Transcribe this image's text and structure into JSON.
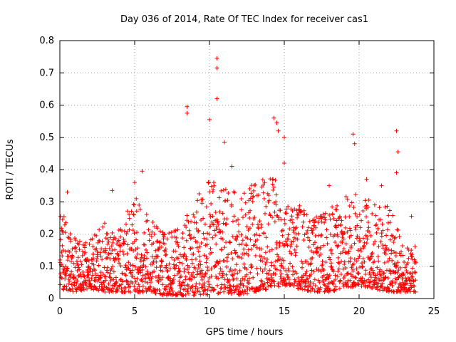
{
  "chart_data": {
    "type": "scatter",
    "title": "Day 036 of 2014, Rate Of TEC Index for receiver cas1",
    "xlabel": "GPS time / hours",
    "ylabel": "ROTI / TECUs",
    "xlim": [
      0,
      25
    ],
    "ylim": [
      0,
      0.8
    ],
    "xticks": [
      0,
      5,
      10,
      15,
      20,
      25
    ],
    "yticks": [
      0,
      0.1,
      0.2,
      0.3,
      0.4,
      0.5,
      0.6,
      0.7,
      0.8
    ],
    "xtick_labels": [
      "0",
      "5",
      "10",
      "15",
      "20",
      "25"
    ],
    "ytick_labels": [
      "0",
      "0.1",
      "0.2",
      "0.3",
      "0.4",
      "0.5",
      "0.6",
      "0.7",
      "0.8"
    ],
    "grid": true,
    "marker": "+",
    "color": "#ff0000",
    "x_range_of_data": [
      0,
      23.8
    ],
    "series": [
      {
        "name": "ROTI",
        "notable_points": [
          {
            "x": 0.5,
            "y": 0.33
          },
          {
            "x": 3.5,
            "y": 0.335
          },
          {
            "x": 5.0,
            "y": 0.36
          },
          {
            "x": 5.5,
            "y": 0.395
          },
          {
            "x": 8.5,
            "y": 0.595
          },
          {
            "x": 8.5,
            "y": 0.575
          },
          {
            "x": 10.0,
            "y": 0.555
          },
          {
            "x": 10.5,
            "y": 0.745
          },
          {
            "x": 10.5,
            "y": 0.715
          },
          {
            "x": 10.5,
            "y": 0.62
          },
          {
            "x": 11.0,
            "y": 0.485
          },
          {
            "x": 11.5,
            "y": 0.41
          },
          {
            "x": 14.3,
            "y": 0.56
          },
          {
            "x": 14.5,
            "y": 0.545
          },
          {
            "x": 14.6,
            "y": 0.52
          },
          {
            "x": 15.0,
            "y": 0.5
          },
          {
            "x": 15.0,
            "y": 0.42
          },
          {
            "x": 18.0,
            "y": 0.35
          },
          {
            "x": 19.6,
            "y": 0.51
          },
          {
            "x": 19.7,
            "y": 0.48
          },
          {
            "x": 20.5,
            "y": 0.37
          },
          {
            "x": 21.5,
            "y": 0.35
          },
          {
            "x": 22.5,
            "y": 0.52
          },
          {
            "x": 22.6,
            "y": 0.455
          },
          {
            "x": 22.5,
            "y": 0.39
          },
          {
            "x": 23.5,
            "y": 0.255
          }
        ],
        "envelope": {
          "description": "dense band of points, typical ROTI values per hour",
          "hours": [
            0,
            1,
            2,
            3,
            4,
            5,
            6,
            7,
            8,
            9,
            10,
            11,
            12,
            13,
            14,
            15,
            16,
            17,
            18,
            19,
            20,
            21,
            22,
            23
          ],
          "low": [
            0.03,
            0.02,
            0.03,
            0.02,
            0.02,
            0.02,
            0.02,
            0.01,
            0.01,
            0.01,
            0.01,
            0.02,
            0.01,
            0.02,
            0.03,
            0.04,
            0.03,
            0.02,
            0.02,
            0.03,
            0.04,
            0.03,
            0.02,
            0.02
          ],
          "high": [
            0.28,
            0.19,
            0.18,
            0.24,
            0.22,
            0.32,
            0.25,
            0.2,
            0.22,
            0.3,
            0.38,
            0.35,
            0.33,
            0.37,
            0.42,
            0.3,
            0.3,
            0.25,
            0.28,
            0.32,
            0.33,
            0.3,
            0.3,
            0.16
          ]
        }
      }
    ]
  }
}
